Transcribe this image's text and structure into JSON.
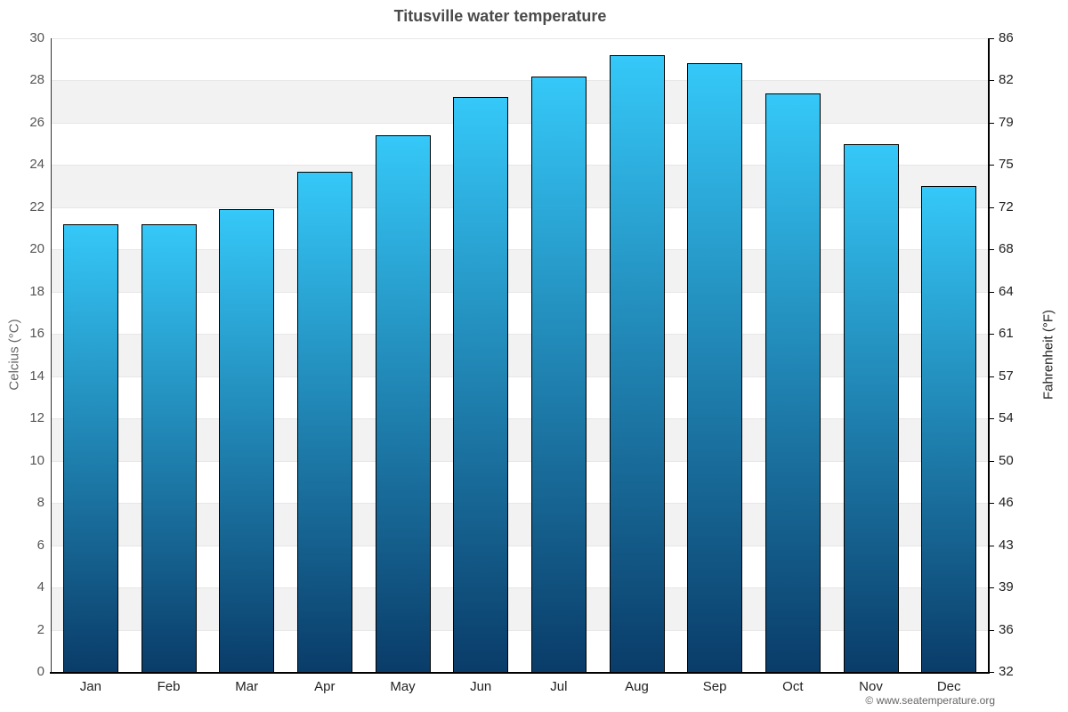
{
  "header": {
    "title": "Titusville water temperature"
  },
  "footer": {
    "copyright": "© www.seatemperature.org"
  },
  "chart_data": {
    "type": "bar",
    "title": "Titusville water temperature",
    "categories": [
      "Jan",
      "Feb",
      "Mar",
      "Apr",
      "May",
      "Jun",
      "Jul",
      "Aug",
      "Sep",
      "Oct",
      "Nov",
      "Dec"
    ],
    "values": [
      21.2,
      21.2,
      21.9,
      23.7,
      25.4,
      27.2,
      28.2,
      29.2,
      28.8,
      27.4,
      25.0,
      23.0
    ],
    "values_unit": "°C",
    "ylabel_left": "Celcius (°C)",
    "ylabel_right": "Fahrenheit (°F)",
    "ylim": [
      0,
      30
    ],
    "ytick_step_celsius": 2,
    "yticks_celsius": [
      30,
      28,
      26,
      24,
      22,
      20,
      18,
      16,
      14,
      12,
      10,
      8,
      6,
      4,
      2,
      0
    ],
    "yticks_fahrenheit": [
      86,
      82,
      79,
      75,
      72,
      68,
      64,
      61,
      57,
      54,
      50,
      46,
      43,
      39,
      36,
      32
    ],
    "grid": true,
    "alternating_bands": true,
    "legend": false,
    "colors": {
      "bar_gradient_top": "#35c8f8",
      "bar_gradient_bottom": "#0a3c69",
      "bar_border": "#000000",
      "band_alt": "#f2f2f2",
      "band_main": "#ffffff",
      "gridline": "#e7e7e7",
      "axis_line": "#000000",
      "title_text": "#4a4a4a",
      "left_tick_text": "#555555",
      "right_tick_text": "#222222",
      "month_text": "#222222",
      "left_axis_title_text": "#666666",
      "right_axis_title_text": "#222222",
      "copyright_text": "#666666"
    }
  }
}
